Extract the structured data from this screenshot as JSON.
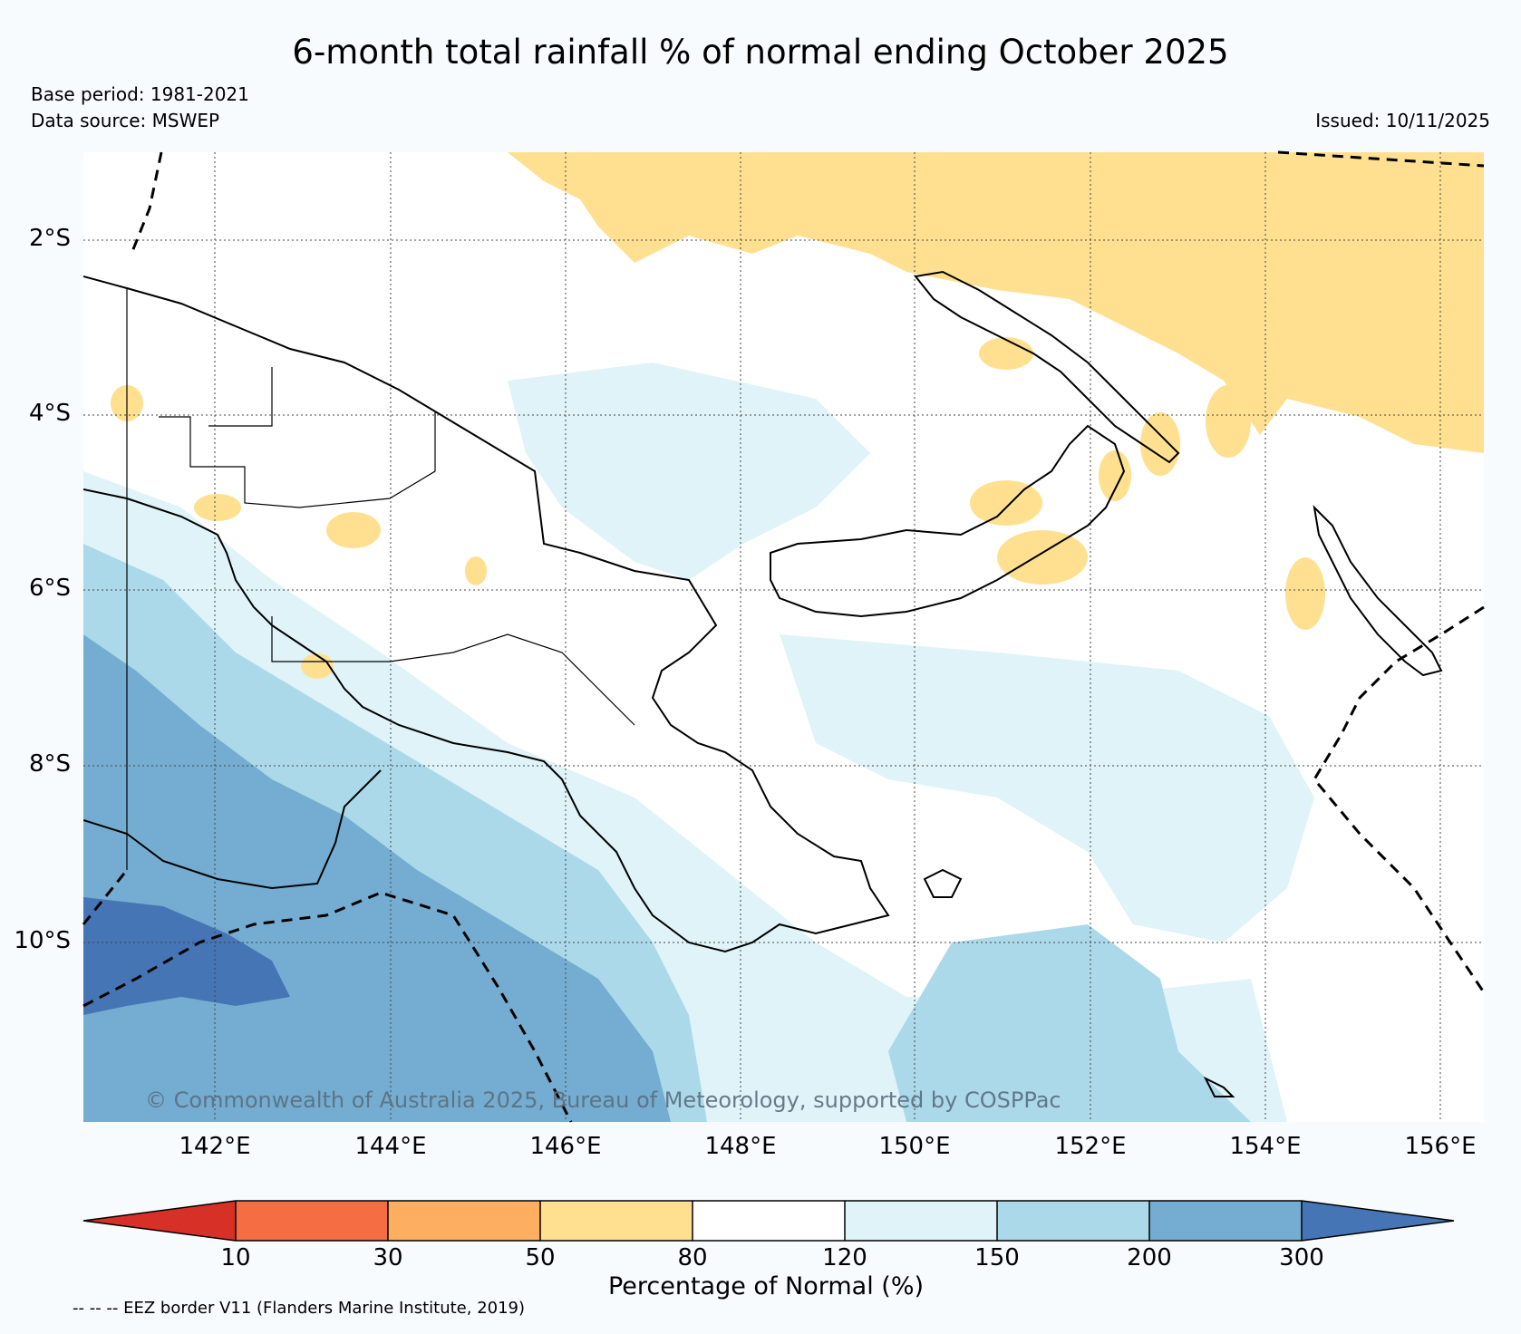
{
  "title": "6-month total rainfall % of normal ending October 2025",
  "base_period": "Base period: 1981-2021",
  "data_source": "Data source: MSWEP",
  "issued": "Issued: 10/11/2025",
  "copyright": "© Commonwealth of Australia 2025, Bureau of Meteorology, supported by COSPPac",
  "map": {
    "lat_labels": [
      "2°S",
      "4°S",
      "6°S",
      "8°S",
      "10°S"
    ],
    "lon_labels": [
      "142°E",
      "144°E",
      "146°E",
      "148°E",
      "150°E",
      "152°E",
      "154°E",
      "156°E"
    ]
  },
  "colorbar": {
    "title": "Percentage of Normal (%)",
    "boundaries": [
      "10",
      "30",
      "50",
      "80",
      "120",
      "150",
      "200",
      "300"
    ],
    "colors": [
      "#d73027",
      "#f46d43",
      "#fdae61",
      "#fee090",
      "#ffffff",
      "#e0f3f8",
      "#abd9e9",
      "#74add1",
      "#4575b4"
    ]
  },
  "eez_note": "-- -- -- EEZ border V11 (Flanders Marine Institute, 2019)"
}
